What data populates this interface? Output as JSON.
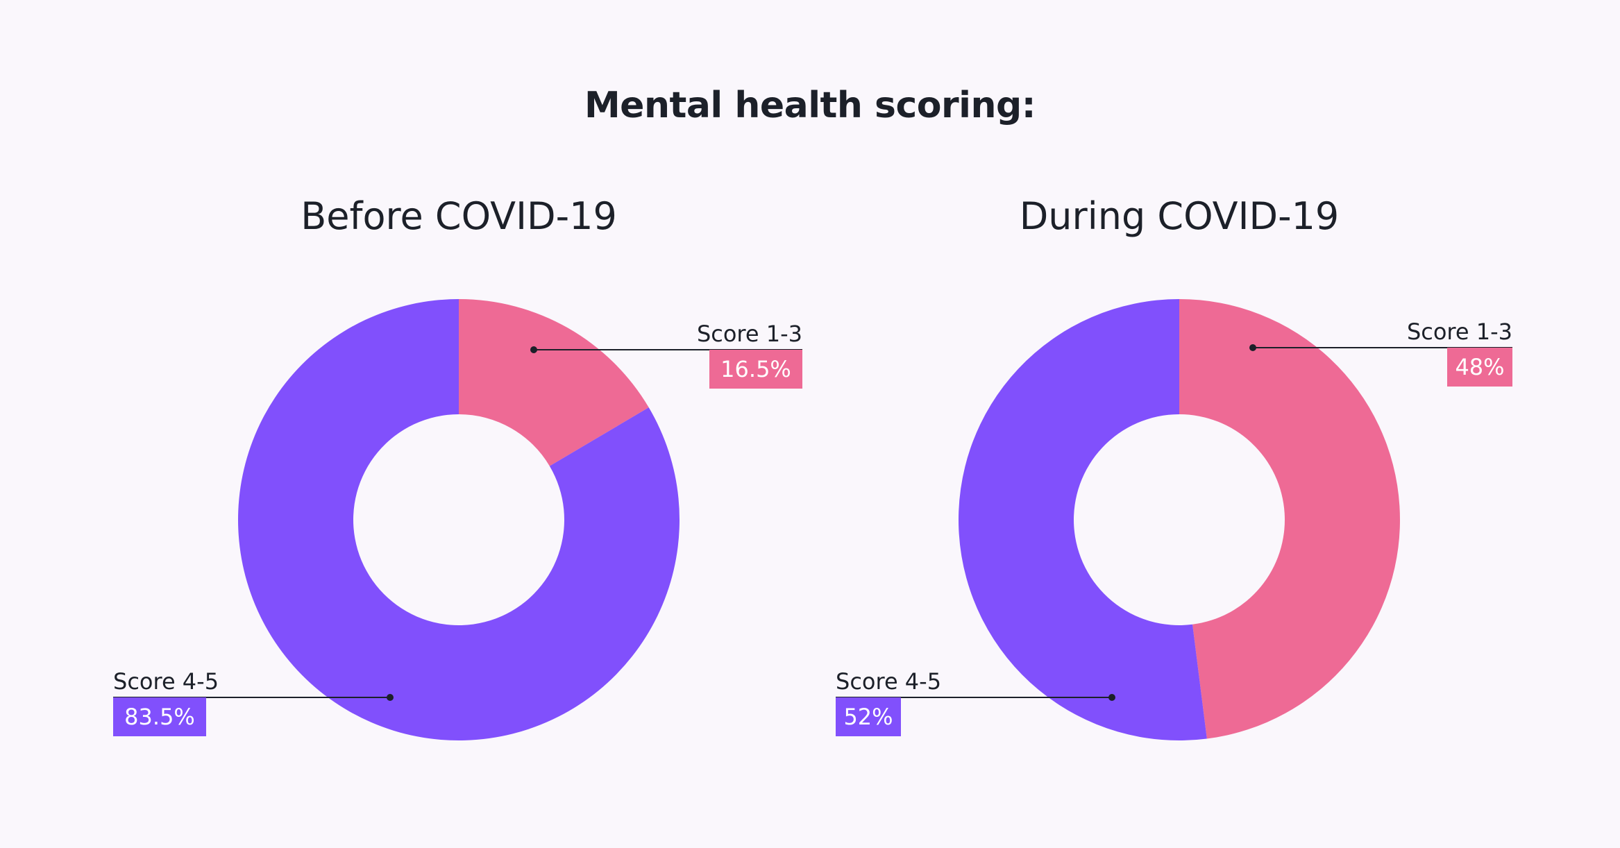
{
  "title": "Mental health scoring:",
  "colors": {
    "background": "#faf7fc",
    "score_1_3": "#ee6a95",
    "score_4_5": "#8150fc",
    "text": "#1c2029"
  },
  "chart_data": [
    {
      "type": "pie",
      "variant": "donut",
      "title": "Before COVID-19",
      "labels": [
        "Score 1-3",
        "Score 4-5"
      ],
      "values": [
        16.5,
        83.5
      ],
      "value_labels": [
        "16.5%",
        "83.5%"
      ],
      "colors": [
        "#ee6a95",
        "#8150fc"
      ],
      "start_angle": "12 o'clock",
      "direction": "clockwise"
    },
    {
      "type": "pie",
      "variant": "donut",
      "title": "During COVID-19",
      "labels": [
        "Score 1-3",
        "Score 4-5"
      ],
      "values": [
        48,
        52
      ],
      "value_labels": [
        "48%",
        "52%"
      ],
      "colors": [
        "#ee6a95",
        "#8150fc"
      ],
      "start_angle": "12 o'clock",
      "direction": "clockwise"
    }
  ]
}
